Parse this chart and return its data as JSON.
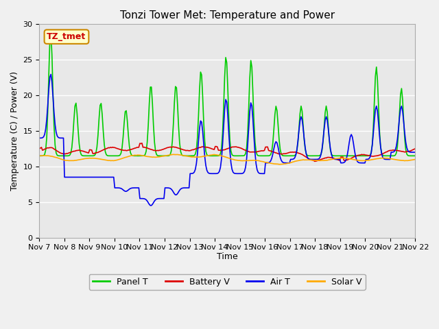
{
  "title": "Tonzi Tower Met: Temperature and Power",
  "xlabel": "Time",
  "ylabel": "Temperature (C) / Power (V)",
  "ylim": [
    0,
    30
  ],
  "yticks": [
    0,
    5,
    10,
    15,
    20,
    25,
    30
  ],
  "xlim": [
    0,
    15
  ],
  "xtick_labels": [
    "Nov 7",
    "Nov 8",
    "Nov 9",
    "Nov 10",
    "Nov 11",
    "Nov 12",
    "Nov 13",
    "Nov 14",
    "Nov 15",
    "Nov 16",
    "Nov 17",
    "Nov 18",
    "Nov 19",
    "Nov 20",
    "Nov 21",
    "Nov 22"
  ],
  "legend_labels": [
    "Panel T",
    "Battery V",
    "Air T",
    "Solar V"
  ],
  "panel_color": "#00cc00",
  "battery_color": "#dd0000",
  "air_color": "#0000ee",
  "solar_color": "#ffaa00",
  "annotation_text": "TZ_tmet",
  "annotation_color": "#cc0000",
  "annotation_bg": "#ffffcc",
  "annotation_border": "#cc8800",
  "fig_bg": "#f0f0f0",
  "plot_bg": "#e8e8e8",
  "grid_color": "#ffffff",
  "linewidth": 1.2,
  "title_fontsize": 11,
  "label_fontsize": 9,
  "tick_fontsize": 8,
  "legend_fontsize": 9
}
